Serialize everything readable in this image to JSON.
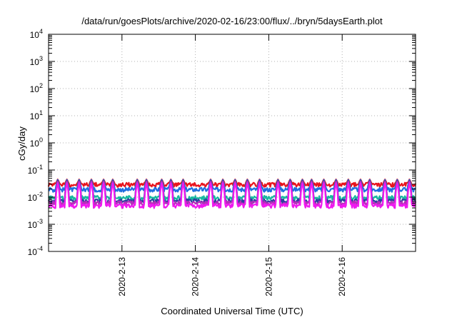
{
  "chart_data": {
    "type": "line",
    "title": "/data/run/goesPlots/archive/2020-02-16/23:00/flux/../bryn/5daysEarth.plot",
    "xlabel": "Coordinated Universal Time (UTC)",
    "ylabel": "cGy/day",
    "yscale": "log",
    "ylim": [
      0.0001,
      10000
    ],
    "y_ticks": [
      {
        "base": "10",
        "exp": "-4"
      },
      {
        "base": "10",
        "exp": "-3"
      },
      {
        "base": "10",
        "exp": "-2"
      },
      {
        "base": "10",
        "exp": "-1"
      },
      {
        "base": "10",
        "exp": "0"
      },
      {
        "base": "10",
        "exp": "1"
      },
      {
        "base": "10",
        "exp": "2"
      },
      {
        "base": "10",
        "exp": "3"
      },
      {
        "base": "10",
        "exp": "4"
      }
    ],
    "xlim": [
      "2020-02-12 00:00",
      "2020-02-17 00:00"
    ],
    "x_ticks": [
      "2020-2-13",
      "2020-2-14",
      "2020-2-15",
      "2020-2-16"
    ],
    "x_tick_values": [
      "2020-02-13",
      "2020-02-14",
      "2020-02-15",
      "2020-02-16"
    ],
    "grid": true,
    "spike_times": [
      "2020-02-12 03:00",
      "2020-02-12 06:00",
      "2020-02-12 10:00",
      "2020-02-12 14:00",
      "2020-02-12 18:00",
      "2020-02-12 21:00",
      "2020-02-13 05:00",
      "2020-02-13 08:00",
      "2020-02-13 13:00",
      "2020-02-13 16:00",
      "2020-02-13 20:00",
      "2020-02-14 05:00",
      "2020-02-14 09:00",
      "2020-02-14 13:00",
      "2020-02-14 17:00",
      "2020-02-14 21:00",
      "2020-02-15 03:00",
      "2020-02-15 07:00",
      "2020-02-15 11:00",
      "2020-02-15 14:00",
      "2020-02-15 18:00",
      "2020-02-15 22:00",
      "2020-02-16 02:00",
      "2020-02-16 06:00",
      "2020-02-16 09:00",
      "2020-02-16 14:00",
      "2020-02-16 18:00",
      "2020-02-16 22:00"
    ],
    "series": [
      {
        "color": "#e8141d",
        "baseline": 0.029,
        "spike_peak": 0.045
      },
      {
        "color": "#1f6fe0",
        "baseline": 0.019,
        "spike_peak": 0.043
      },
      {
        "color": "#18b8a0",
        "baseline": 0.0095,
        "spike_peak": 0.036
      },
      {
        "color": "#2e3ea0",
        "baseline": 0.0072,
        "spike_peak": 0.04
      },
      {
        "color": "#b42fb8",
        "baseline": 0.006,
        "spike_peak": 0.038
      },
      {
        "color": "#f019f0",
        "baseline": 0.0048,
        "spike_peak": 0.033
      }
    ]
  }
}
